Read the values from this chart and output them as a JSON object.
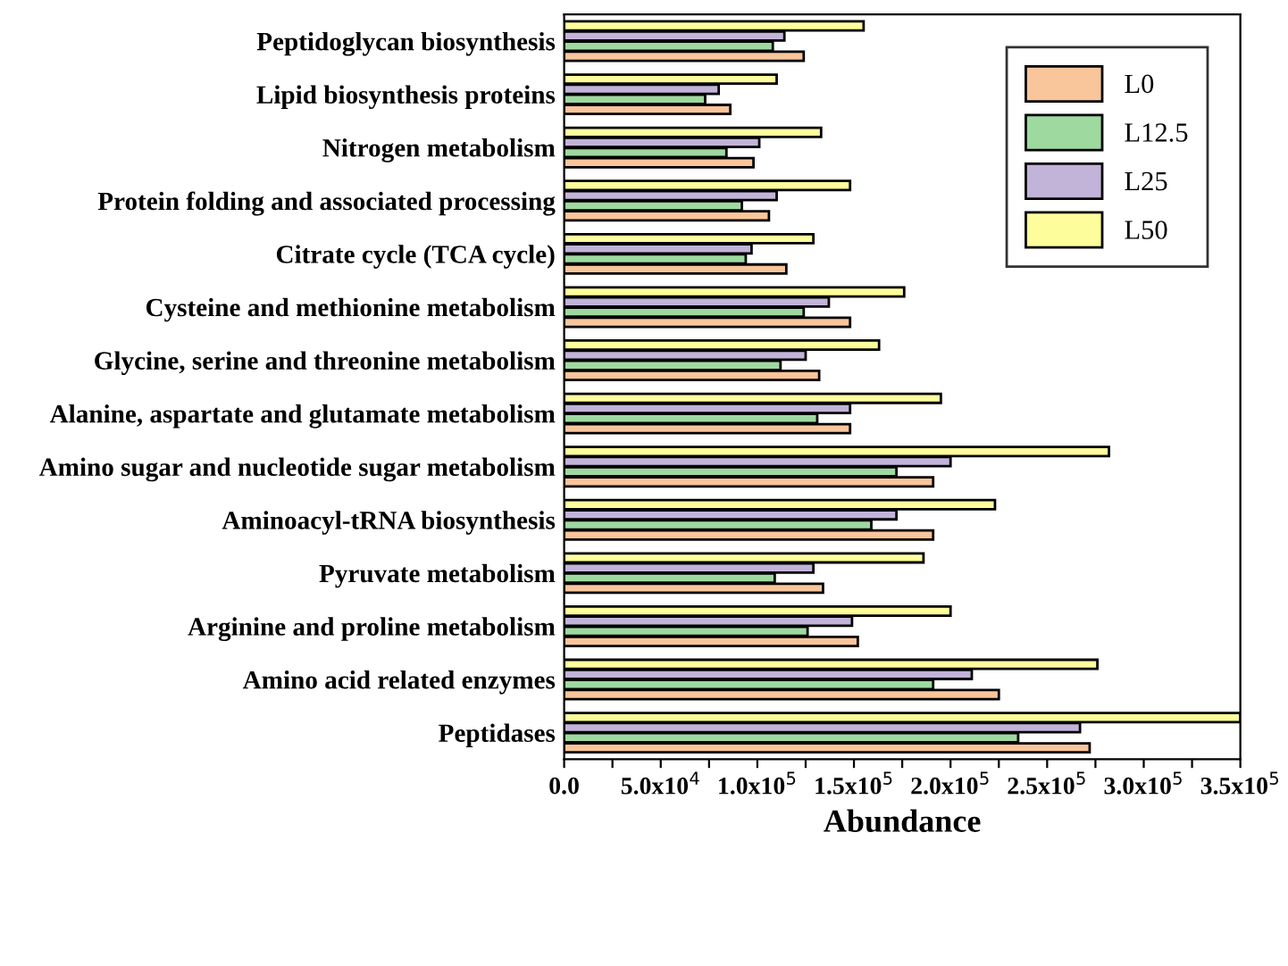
{
  "chart_data": {
    "type": "bar",
    "orientation": "horizontal",
    "xlabel": "Abundance",
    "categories": [
      "Peptidoglycan biosynthesis",
      "Lipid biosynthesis proteins",
      "Nitrogen metabolism",
      "Protein folding and associated processing",
      "Citrate cycle (TCA cycle)",
      "Cysteine and methionine metabolism",
      "Glycine, serine and threonine metabolism",
      "Alanine, aspartate and glutamate metabolism",
      "Amino sugar and nucleotide sugar metabolism",
      "Aminoacyl-tRNA biosynthesis",
      "Pyruvate metabolism",
      "Arginine and proline metabolism",
      "Amino acid related enzymes",
      "Peptidases"
    ],
    "series": [
      {
        "name": "L0",
        "color": "#f9c59b",
        "values": [
          124000,
          86000,
          98000,
          106000,
          115000,
          148000,
          132000,
          148000,
          191000,
          191000,
          134000,
          152000,
          225000,
          272000
        ]
      },
      {
        "name": "L12.5",
        "color": "#9ed9a0",
        "values": [
          108000,
          73000,
          84000,
          92000,
          94000,
          124000,
          112000,
          131000,
          172000,
          159000,
          109000,
          126000,
          191000,
          235000
        ]
      },
      {
        "name": "L25",
        "color": "#c2b3d9",
        "values": [
          114000,
          80000,
          101000,
          110000,
          97000,
          137000,
          125000,
          148000,
          200000,
          172000,
          129000,
          149000,
          211000,
          267000
        ]
      },
      {
        "name": "L50",
        "color": "#fdfd9c",
        "values": [
          155000,
          110000,
          133000,
          148000,
          129000,
          176000,
          163000,
          195000,
          282000,
          223000,
          186000,
          200000,
          276000,
          350000
        ]
      }
    ],
    "xlim": [
      0,
      350000
    ],
    "xticks": [
      {
        "value": 0,
        "label": "0.0"
      },
      {
        "value": 25000,
        "label": null
      },
      {
        "value": 50000,
        "label": "5.0x10$^{4}$"
      },
      {
        "value": 75000,
        "label": null
      },
      {
        "value": 100000,
        "label": "1.0x10$^{5}$"
      },
      {
        "value": 125000,
        "label": null
      },
      {
        "value": 150000,
        "label": "1.5x10$^{5}$"
      },
      {
        "value": 175000,
        "label": null
      },
      {
        "value": 200000,
        "label": "2.0x10$^{5}$"
      },
      {
        "value": 225000,
        "label": null
      },
      {
        "value": 250000,
        "label": "2.5x10$^{5}$"
      },
      {
        "value": 275000,
        "label": null
      },
      {
        "value": 300000,
        "label": "3.0x10$^{5}$"
      },
      {
        "value": 325000,
        "label": null
      },
      {
        "value": 350000,
        "label": "3.5x10$^{5}$"
      }
    ],
    "legend": "top right",
    "grid": false
  }
}
